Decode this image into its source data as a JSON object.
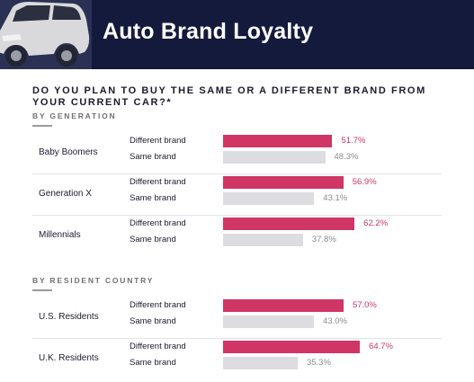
{
  "header": {
    "title": "Auto Brand Loyalty"
  },
  "chart_data": {
    "type": "bar",
    "orientation": "horizontal",
    "title": "DO YOU PLAN TO BUY THE SAME OR A DIFFERENT BRAND FROM YOUR CURRENT CAR?*",
    "colors": {
      "different": "#cf3565",
      "same": "#dcdce1",
      "header": "#141a3c"
    },
    "sections": [
      {
        "label": "BY GENERATION",
        "groups": [
          {
            "name": "Baby Boomers",
            "series": [
              {
                "name": "Different brand",
                "value": 51.7,
                "label": "51.7%"
              },
              {
                "name": "Same brand",
                "value": 48.3,
                "label": "48.3%"
              }
            ]
          },
          {
            "name": "Generation X",
            "series": [
              {
                "name": "Different brand",
                "value": 56.9,
                "label": "56.9%"
              },
              {
                "name": "Same brand",
                "value": 43.1,
                "label": "43.1%"
              }
            ]
          },
          {
            "name": "Millennials",
            "series": [
              {
                "name": "Different brand",
                "value": 62.2,
                "label": "62.2%"
              },
              {
                "name": "Same brand",
                "value": 37.8,
                "label": "37.8%"
              }
            ]
          }
        ]
      },
      {
        "label": "BY RESIDENT COUNTRY",
        "groups": [
          {
            "name": "U.S. Residents",
            "series": [
              {
                "name": "Different brand",
                "value": 57.0,
                "label": "57.0%"
              },
              {
                "name": "Same brand",
                "value": 43.0,
                "label": "43.0%"
              }
            ]
          },
          {
            "name": "U.K. Residents",
            "series": [
              {
                "name": "Different brand",
                "value": 64.7,
                "label": "64.7%"
              },
              {
                "name": "Same brand",
                "value": 35.3,
                "label": "35.3%"
              }
            ]
          }
        ]
      }
    ]
  }
}
